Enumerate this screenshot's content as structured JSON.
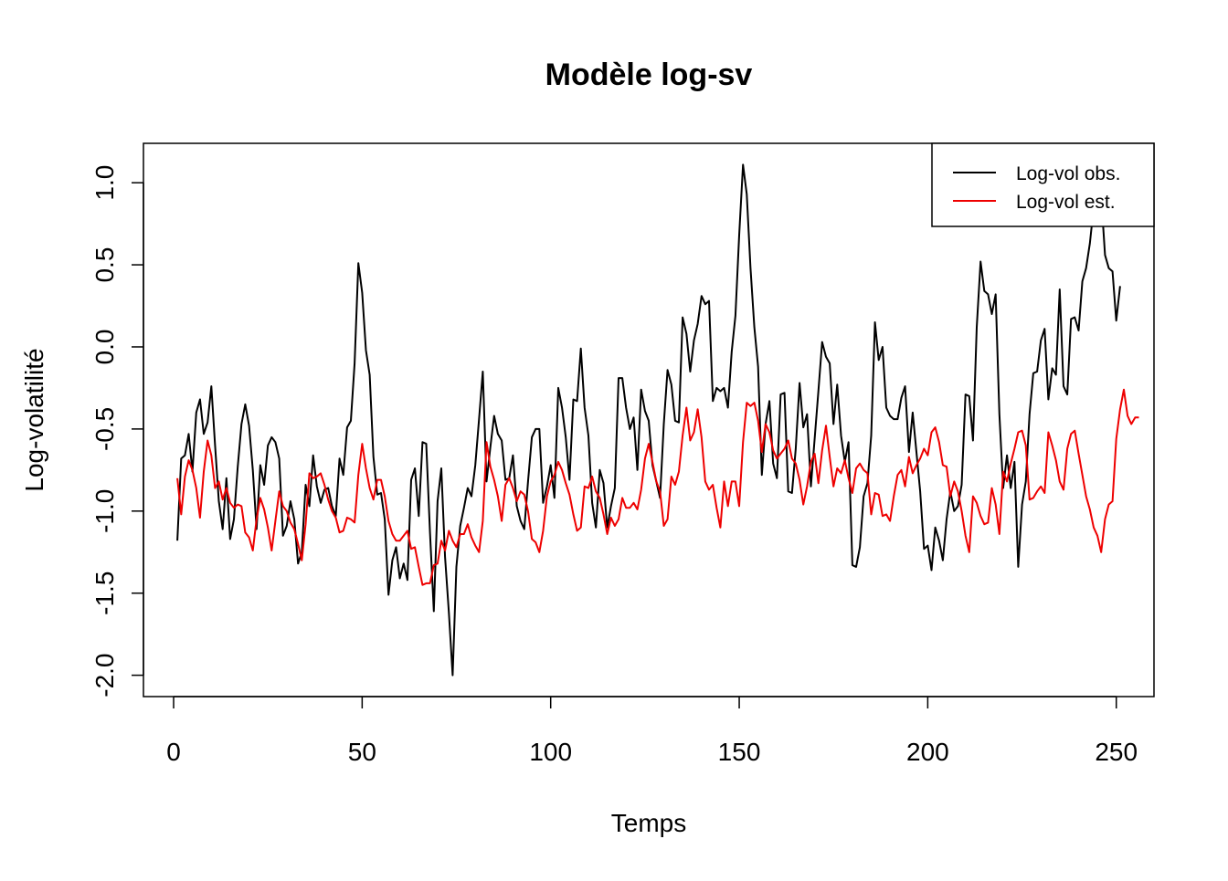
{
  "chart_data": {
    "type": "line",
    "title": "Modèle log-sv",
    "xlabel": "Temps",
    "ylabel": "Log-volatilité",
    "xlim": [
      -8,
      260
    ],
    "ylim": [
      -2.13,
      1.24
    ],
    "x_ticks": [
      0,
      50,
      100,
      150,
      200,
      250
    ],
    "x_tick_labels": [
      "0",
      "50",
      "100",
      "150",
      "200",
      "250"
    ],
    "y_ticks": [
      -2.0,
      -1.5,
      -1.0,
      -0.5,
      0.0,
      0.5,
      1.0
    ],
    "y_tick_labels": [
      "-2.0",
      "-1.5",
      "-1.0",
      "-0.5",
      "0.0",
      "0.5",
      "1.0"
    ],
    "grid": false,
    "legend_position": "top-right",
    "x_start": 1,
    "series": [
      {
        "name": "Log-vol obs.",
        "color": "#000000",
        "values": [
          -1.18,
          -0.68,
          -0.66,
          -0.53,
          -0.76,
          -0.4,
          -0.32,
          -0.53,
          -0.46,
          -0.24,
          -0.6,
          -0.94,
          -1.11,
          -0.8,
          -1.17,
          -1.05,
          -0.73,
          -0.47,
          -0.35,
          -0.48,
          -0.75,
          -1.11,
          -0.72,
          -0.84,
          -0.6,
          -0.55,
          -0.58,
          -0.68,
          -1.15,
          -1.09,
          -0.94,
          -1.05,
          -1.32,
          -1.25,
          -0.84,
          -0.97,
          -0.66,
          -0.85,
          -0.95,
          -0.87,
          -0.86,
          -0.97,
          -1.03,
          -0.68,
          -0.78,
          -0.49,
          -0.45,
          -0.1,
          0.51,
          0.33,
          -0.02,
          -0.17,
          -0.67,
          -0.9,
          -0.89,
          -1.05,
          -1.51,
          -1.3,
          -1.22,
          -1.41,
          -1.32,
          -1.42,
          -0.81,
          -0.74,
          -1.03,
          -0.58,
          -0.59,
          -1.13,
          -1.61,
          -0.94,
          -0.74,
          -1.28,
          -1.62,
          -2.0,
          -1.34,
          -1.09,
          -0.98,
          -0.86,
          -0.91,
          -0.72,
          -0.44,
          -0.15,
          -0.82,
          -0.61,
          -0.42,
          -0.53,
          -0.57,
          -0.81,
          -0.8,
          -0.66,
          -0.97,
          -1.06,
          -1.11,
          -0.82,
          -0.55,
          -0.5,
          -0.5,
          -0.95,
          -0.85,
          -0.72,
          -0.92,
          -0.25,
          -0.37,
          -0.55,
          -0.81,
          -0.32,
          -0.33,
          -0.01,
          -0.37,
          -0.54,
          -0.95,
          -1.1,
          -0.75,
          -0.83,
          -1.1,
          -0.97,
          -0.86,
          -0.19,
          -0.19,
          -0.37,
          -0.5,
          -0.43,
          -0.75,
          -0.26,
          -0.39,
          -0.45,
          -0.72,
          -0.82,
          -0.92,
          -0.47,
          -0.14,
          -0.23,
          -0.45,
          -0.46,
          0.18,
          0.08,
          -0.15,
          0.04,
          0.14,
          0.31,
          0.26,
          0.28,
          -0.33,
          -0.25,
          -0.27,
          -0.25,
          -0.37,
          -0.03,
          0.19,
          0.68,
          1.11,
          0.93,
          0.48,
          0.12,
          -0.12,
          -0.78,
          -0.47,
          -0.33,
          -0.71,
          -0.8,
          -0.29,
          -0.28,
          -0.88,
          -0.89,
          -0.62,
          -0.22,
          -0.49,
          -0.41,
          -0.85,
          -0.56,
          -0.27,
          0.03,
          -0.06,
          -0.1,
          -0.47,
          -0.23,
          -0.54,
          -0.7,
          -0.58,
          -1.33,
          -1.34,
          -1.22,
          -0.91,
          -0.83,
          -0.54,
          0.15,
          -0.08,
          0.0,
          -0.37,
          -0.42,
          -0.44,
          -0.44,
          -0.31,
          -0.24,
          -0.64,
          -0.4,
          -0.64,
          -0.88,
          -1.23,
          -1.21,
          -1.36,
          -1.1,
          -1.18,
          -1.3,
          -1.05,
          -0.88,
          -1.0,
          -0.97,
          -0.84,
          -0.29,
          -0.3,
          -0.57,
          0.12,
          0.52,
          0.34,
          0.32,
          0.2,
          0.32,
          -0.41,
          -0.86,
          -0.66,
          -0.86,
          -0.7,
          -1.34,
          -0.96,
          -0.82,
          -0.41,
          -0.16,
          -0.15,
          0.04,
          0.11,
          -0.32,
          -0.13,
          -0.17,
          0.35,
          -0.24,
          -0.29,
          0.17,
          0.18,
          0.1,
          0.4,
          0.48,
          0.63,
          0.85,
          0.91,
          0.92,
          0.56,
          0.48,
          0.46,
          0.16,
          0.37
        ]
      },
      {
        "name": "Log-vol est.",
        "color": "#ee0000",
        "values": [
          -0.8,
          -1.02,
          -0.79,
          -0.69,
          -0.75,
          -0.86,
          -1.04,
          -0.76,
          -0.57,
          -0.66,
          -0.86,
          -0.82,
          -0.93,
          -0.86,
          -0.95,
          -0.98,
          -0.96,
          -0.97,
          -1.13,
          -1.16,
          -1.24,
          -1.05,
          -0.92,
          -0.99,
          -1.1,
          -1.24,
          -1.06,
          -0.88,
          -0.97,
          -1.0,
          -1.07,
          -1.11,
          -1.2,
          -1.3,
          -1.08,
          -0.77,
          -0.8,
          -0.79,
          -0.77,
          -0.84,
          -0.93,
          -1.0,
          -1.04,
          -1.13,
          -1.12,
          -1.04,
          -1.05,
          -1.07,
          -0.78,
          -0.59,
          -0.74,
          -0.86,
          -0.93,
          -0.81,
          -0.81,
          -0.91,
          -1.06,
          -1.14,
          -1.18,
          -1.18,
          -1.15,
          -1.12,
          -1.23,
          -1.22,
          -1.34,
          -1.45,
          -1.44,
          -1.44,
          -1.33,
          -1.32,
          -1.18,
          -1.24,
          -1.12,
          -1.18,
          -1.22,
          -1.14,
          -1.14,
          -1.08,
          -1.16,
          -1.21,
          -1.25,
          -1.06,
          -0.58,
          -0.73,
          -0.81,
          -0.91,
          -1.06,
          -0.84,
          -0.8,
          -0.86,
          -0.94,
          -0.88,
          -0.9,
          -1.0,
          -1.17,
          -1.19,
          -1.25,
          -1.12,
          -0.91,
          -0.82,
          -0.78,
          -0.7,
          -0.75,
          -0.83,
          -0.9,
          -1.02,
          -1.12,
          -1.1,
          -0.85,
          -0.86,
          -0.79,
          -0.88,
          -0.92,
          -1.02,
          -1.14,
          -1.04,
          -1.09,
          -1.05,
          -0.92,
          -0.98,
          -0.98,
          -0.95,
          -0.99,
          -0.87,
          -0.68,
          -0.59,
          -0.7,
          -0.82,
          -0.88,
          -1.09,
          -1.05,
          -0.79,
          -0.84,
          -0.76,
          -0.54,
          -0.37,
          -0.57,
          -0.52,
          -0.38,
          -0.55,
          -0.82,
          -0.87,
          -0.84,
          -0.98,
          -1.1,
          -0.82,
          -0.97,
          -0.82,
          -0.82,
          -0.97,
          -0.58,
          -0.34,
          -0.36,
          -0.34,
          -0.45,
          -0.64,
          -0.47,
          -0.52,
          -0.63,
          -0.68,
          -0.65,
          -0.62,
          -0.57,
          -0.68,
          -0.71,
          -0.81,
          -0.96,
          -0.85,
          -0.7,
          -0.65,
          -0.83,
          -0.63,
          -0.48,
          -0.67,
          -0.85,
          -0.74,
          -0.77,
          -0.69,
          -0.8,
          -0.89,
          -0.74,
          -0.71,
          -0.75,
          -0.77,
          -1.02,
          -0.89,
          -0.9,
          -1.03,
          -1.02,
          -1.06,
          -0.91,
          -0.78,
          -0.75,
          -0.85,
          -0.67,
          -0.77,
          -0.72,
          -0.68,
          -0.62,
          -0.66,
          -0.52,
          -0.49,
          -0.58,
          -0.72,
          -0.73,
          -0.91,
          -0.82,
          -0.88,
          -1.0,
          -1.15,
          -1.25,
          -0.91,
          -0.95,
          -1.03,
          -1.08,
          -1.07,
          -0.86,
          -0.96,
          -1.14,
          -0.76,
          -0.82,
          -0.71,
          -0.62,
          -0.52,
          -0.51,
          -0.6,
          -0.93,
          -0.92,
          -0.88,
          -0.85,
          -0.89,
          -0.52,
          -0.6,
          -0.69,
          -0.82,
          -0.87,
          -0.62,
          -0.53,
          -0.51,
          -0.65,
          -0.78,
          -0.91,
          -0.99,
          -1.1,
          -1.15,
          -1.25,
          -1.05,
          -0.96,
          -0.94,
          -0.56,
          -0.38,
          -0.26,
          -0.42,
          -0.47,
          -0.43,
          -0.43
        ]
      }
    ]
  }
}
